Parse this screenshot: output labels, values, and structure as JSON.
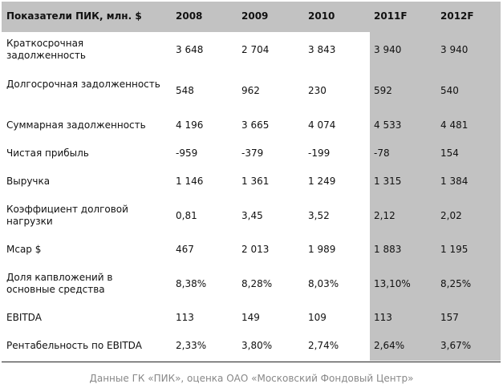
{
  "table": {
    "headers": [
      "Показатели ПИК, млн. $",
      "2008",
      "2009",
      "2010",
      "2011F",
      "2012F"
    ],
    "rows": [
      {
        "label": "Краткосрочная задолженность",
        "values": [
          "3 648",
          "2 704",
          "3 843",
          "3 940",
          "3 940"
        ]
      },
      {
        "label": "Долгосрочная задолженность",
        "values": [
          "548",
          "962",
          "230",
          "592",
          "540"
        ]
      },
      {
        "label": "Суммарная задолженность",
        "values": [
          "4 196",
          "3 665",
          "4 074",
          "4 533",
          "4 481"
        ]
      },
      {
        "label": "Чистая прибыль",
        "values": [
          "-959",
          "-379",
          "-199",
          "-78",
          "154"
        ]
      },
      {
        "label": "Выручка",
        "values": [
          "1 146",
          "1 361",
          "1 249",
          "1 315",
          "1 384"
        ]
      },
      {
        "label": "Коэффициент долговой нагрузки",
        "values": [
          "0,81",
          "3,45",
          "3,52",
          "2,12",
          "2,02"
        ]
      },
      {
        "label": "Mcap $",
        "values": [
          "467",
          "2 013",
          "1 989",
          "1 883",
          "1 195"
        ]
      },
      {
        "label": "Доля капвложений в основные средства",
        "values": [
          "8,38%",
          "8,28%",
          "8,03%",
          "13,10%",
          "8,25%"
        ]
      },
      {
        "label": "EBITDA",
        "values": [
          "113",
          "149",
          "109",
          "113",
          "157"
        ]
      },
      {
        "label": "Рентабельность по EBITDA",
        "values": [
          "2,33%",
          "3,80%",
          "2,74%",
          "2,64%",
          "3,67%"
        ]
      }
    ]
  },
  "source_note": "Данные ГК «ПИК», оценка ОАО «Московский Фондовый Центр»"
}
